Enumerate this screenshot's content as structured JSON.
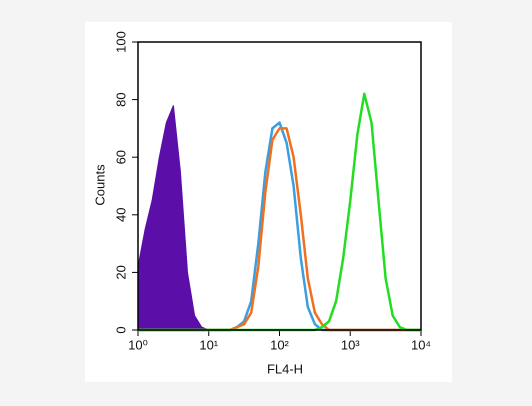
{
  "chart_data": {
    "type": "histogram-overlay",
    "xlabel": "FL4-H",
    "ylabel": "Counts",
    "xscale": "log",
    "xlim": [
      1,
      10000
    ],
    "ylim": [
      0,
      100
    ],
    "xticks": [
      {
        "value": 1,
        "label": "10⁰"
      },
      {
        "value": 10,
        "label": "10¹"
      },
      {
        "value": 100,
        "label": "10²"
      },
      {
        "value": 1000,
        "label": "10³"
      },
      {
        "value": 10000,
        "label": "10⁴"
      }
    ],
    "yticks": [
      0,
      20,
      40,
      60,
      80,
      100
    ],
    "x": [
      1,
      1.26,
      1.58,
      2,
      2.51,
      3.16,
      3.98,
      5.01,
      6.31,
      7.94,
      10,
      12.6,
      15.8,
      20,
      25.1,
      31.6,
      39.8,
      50.1,
      63.1,
      79.4,
      100,
      126,
      158,
      200,
      251,
      316,
      398,
      501,
      631,
      794,
      1000,
      1260,
      1580,
      2000,
      2510,
      3160,
      3980,
      5010,
      6310,
      7940,
      10000
    ],
    "series": [
      {
        "color": "#5b0fa8",
        "fill": true,
        "values": [
          22,
          35,
          45,
          60,
          72,
          78,
          55,
          20,
          5,
          1,
          0,
          0,
          0,
          0,
          0,
          0,
          0,
          0,
          0,
          0,
          0,
          0,
          0,
          0,
          0,
          0,
          0,
          0,
          0,
          0,
          0,
          0,
          0,
          0,
          0,
          0,
          0,
          0,
          0,
          0,
          0
        ]
      },
      {
        "color": "#3a9ee0",
        "fill": false,
        "values": [
          0,
          0,
          0,
          0,
          0,
          0,
          0,
          0,
          0,
          0,
          0,
          0,
          0,
          0,
          1,
          3,
          10,
          30,
          55,
          70,
          72,
          65,
          50,
          25,
          8,
          2,
          0,
          0,
          0,
          0,
          0,
          0,
          0,
          0,
          0,
          0,
          0,
          0,
          0,
          0,
          0
        ]
      },
      {
        "color": "#f07020",
        "fill": false,
        "values": [
          0,
          0,
          0,
          0,
          0,
          0,
          0,
          0,
          0,
          0,
          0,
          0,
          0,
          0,
          1,
          2,
          6,
          22,
          48,
          66,
          70,
          70,
          60,
          40,
          18,
          6,
          2,
          0,
          0,
          0,
          0,
          0,
          0,
          0,
          0,
          0,
          0,
          0,
          0,
          0,
          0
        ]
      },
      {
        "color": "#22dd22",
        "fill": false,
        "values": [
          0,
          0,
          0,
          0,
          0,
          0,
          0,
          0,
          0,
          0,
          0,
          0,
          0,
          0,
          0,
          0,
          0,
          0,
          0,
          0,
          0,
          0,
          0,
          0,
          0,
          0,
          1,
          3,
          10,
          25,
          45,
          68,
          82,
          72,
          45,
          18,
          5,
          1,
          0,
          0,
          0
        ]
      }
    ]
  }
}
